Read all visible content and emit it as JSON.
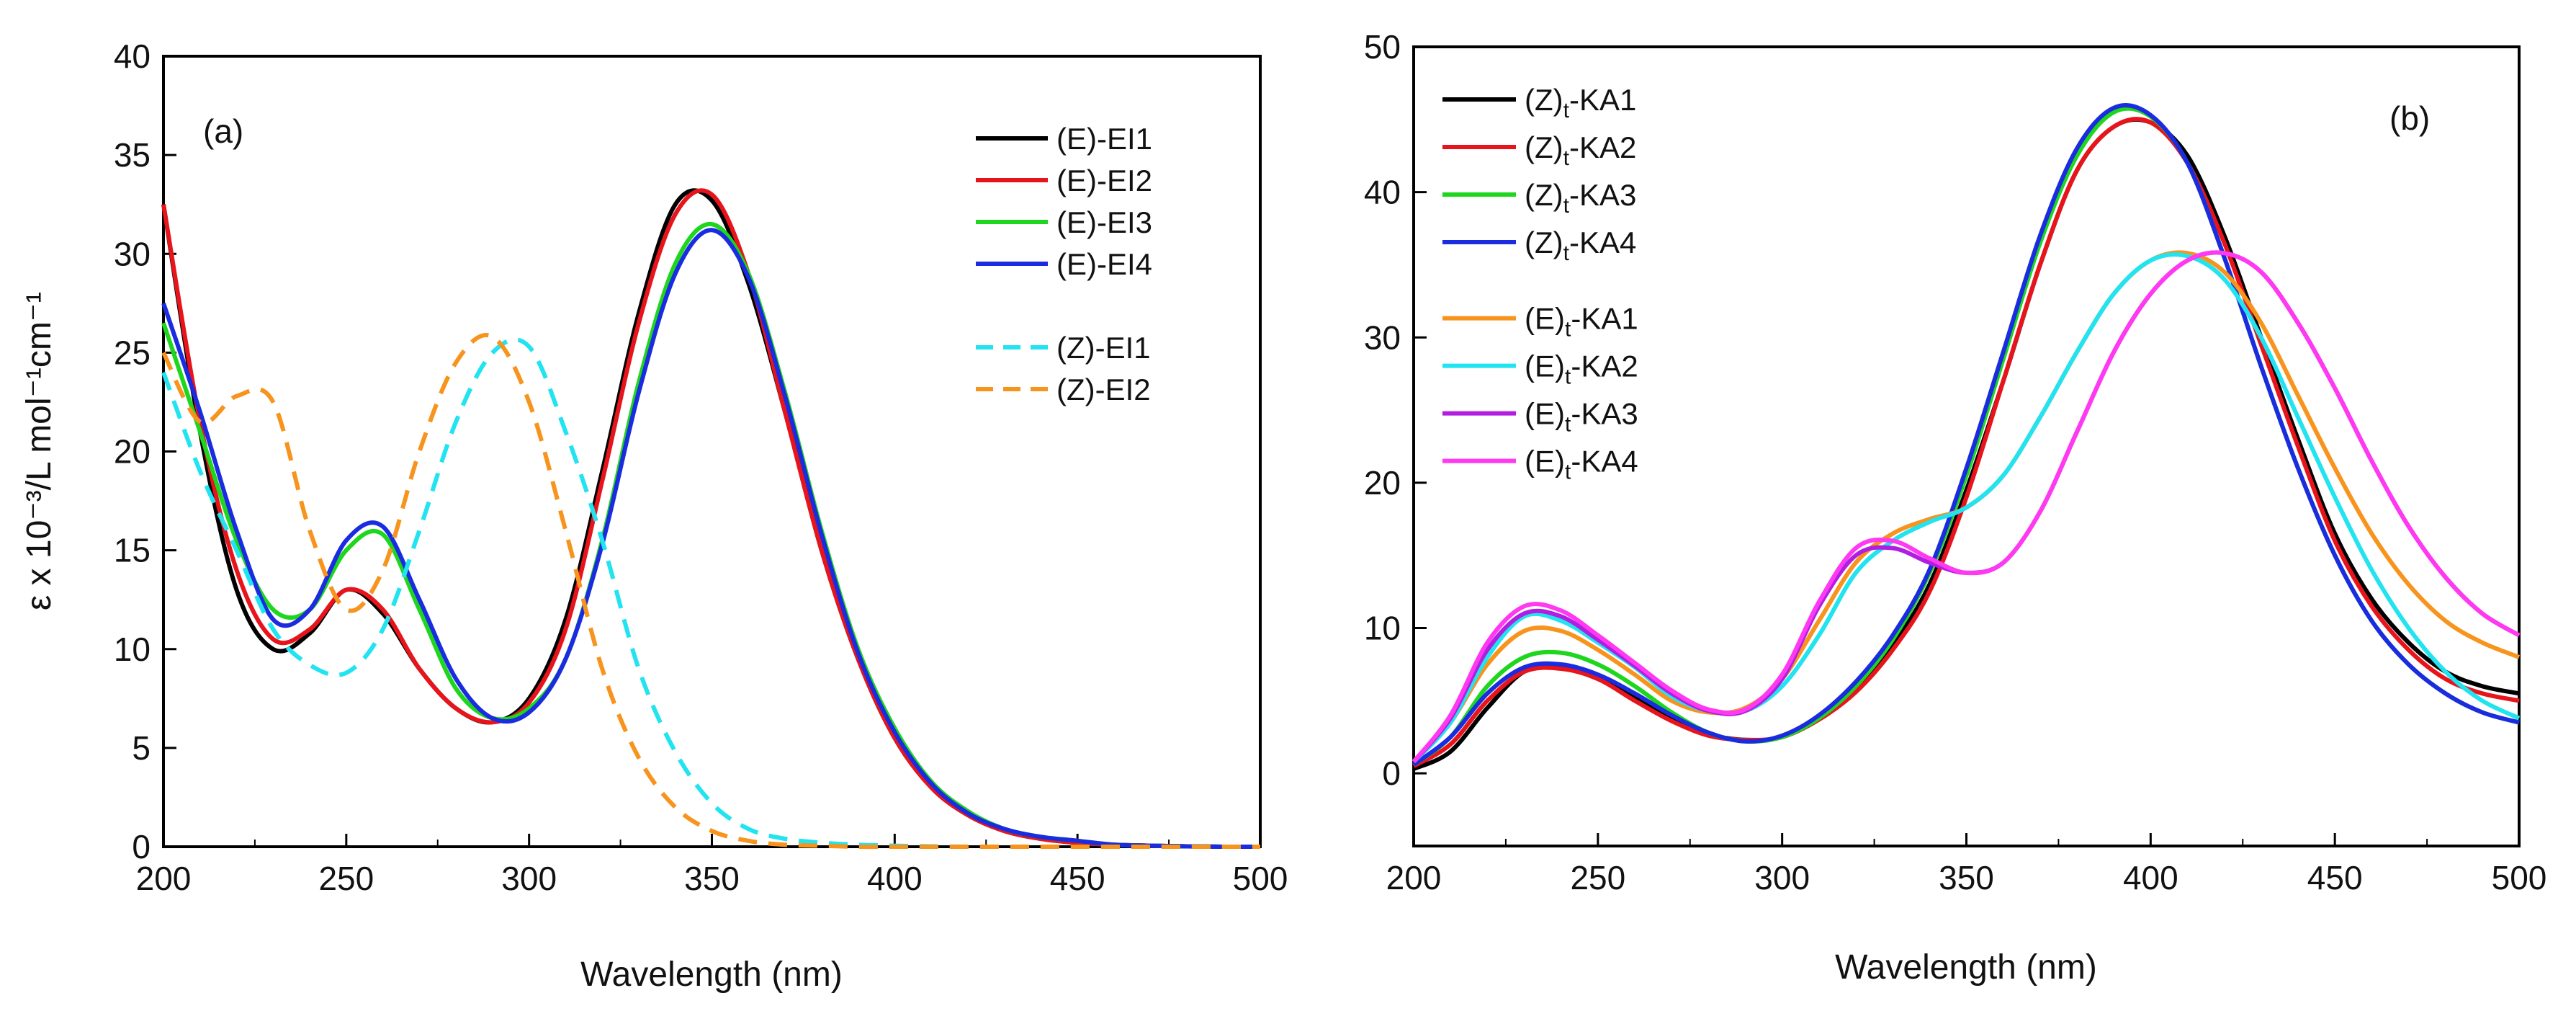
{
  "chart_data": [
    {
      "type": "line",
      "panel_label": "(a)",
      "xlabel": "Wavelength (nm)",
      "ylabel": "ε x 10⁻³/L mol⁻¹cm⁻¹",
      "xlim": [
        200,
        500
      ],
      "ylim": [
        0,
        40
      ],
      "xticks": [
        200,
        250,
        300,
        350,
        400,
        450,
        500
      ],
      "yticks": [
        0,
        5,
        10,
        15,
        20,
        25,
        30,
        35,
        40
      ],
      "xtick_labels": [
        "200",
        "250",
        "300",
        "350",
        "400",
        "450",
        "500"
      ],
      "ytick_labels": [
        "0",
        "5",
        "10",
        "15",
        "20",
        "25",
        "30",
        "35",
        "40"
      ],
      "legend_position": "top-right",
      "series": [
        {
          "name": "(E)-EI1",
          "color": "#000000",
          "dash": "solid",
          "x": [
            200,
            210,
            220,
            230,
            240,
            250,
            260,
            270,
            280,
            290,
            300,
            310,
            320,
            330,
            340,
            350,
            360,
            370,
            380,
            390,
            400,
            410,
            420,
            430,
            440,
            450,
            460,
            470,
            480,
            490,
            500
          ],
          "y": [
            32.5,
            21,
            13,
            10,
            10.8,
            13,
            11.8,
            9,
            7,
            6.3,
            7.5,
            11.5,
            19,
            27,
            32.5,
            32.7,
            28.5,
            22,
            15,
            9.5,
            5.5,
            3,
            1.6,
            0.8,
            0.4,
            0.2,
            0.1,
            0.05,
            0.02,
            0,
            0
          ]
        },
        {
          "name": "(E)-EI2",
          "color": "#e8141c",
          "dash": "solid",
          "x": [
            200,
            210,
            220,
            230,
            240,
            250,
            260,
            270,
            280,
            290,
            300,
            310,
            320,
            330,
            340,
            350,
            360,
            370,
            380,
            390,
            400,
            410,
            420,
            430,
            440,
            450,
            460,
            470,
            480,
            490,
            500
          ],
          "y": [
            32.5,
            21.5,
            14,
            10.5,
            11,
            13,
            12,
            9,
            7,
            6.3,
            7.3,
            11,
            18.5,
            26.5,
            32,
            33,
            29,
            22,
            15,
            9.5,
            5.5,
            3,
            1.6,
            0.8,
            0.4,
            0.2,
            0.1,
            0.05,
            0.02,
            0,
            0
          ]
        },
        {
          "name": "(E)-EI3",
          "color": "#1ed61e",
          "dash": "solid",
          "x": [
            200,
            210,
            220,
            230,
            240,
            250,
            260,
            270,
            280,
            290,
            300,
            310,
            320,
            330,
            340,
            350,
            360,
            370,
            380,
            390,
            400,
            410,
            420,
            430,
            440,
            450,
            460,
            470,
            480,
            490,
            500
          ],
          "y": [
            26.5,
            21,
            15.5,
            12,
            12,
            15,
            15.8,
            12,
            8,
            6.5,
            7,
            9.5,
            15.5,
            23.5,
            29.5,
            31.5,
            29,
            23,
            16,
            10,
            6,
            3.3,
            1.8,
            0.9,
            0.5,
            0.3,
            0.1,
            0.05,
            0.02,
            0,
            0
          ]
        },
        {
          "name": "(E)-EI4",
          "color": "#1a2be0",
          "dash": "solid",
          "x": [
            200,
            210,
            220,
            230,
            240,
            250,
            260,
            270,
            280,
            290,
            300,
            310,
            320,
            330,
            340,
            350,
            360,
            370,
            380,
            390,
            400,
            410,
            420,
            430,
            440,
            450,
            460,
            470,
            480,
            490,
            500
          ],
          "y": [
            27.5,
            22,
            16,
            11.5,
            12,
            15.5,
            16.2,
            12.5,
            8.5,
            6.5,
            6.8,
            9.5,
            15.3,
            23,
            29,
            31.2,
            28.8,
            22.8,
            15.8,
            9.8,
            5.8,
            3.2,
            1.7,
            0.9,
            0.5,
            0.3,
            0.1,
            0.05,
            0.02,
            0,
            0
          ]
        },
        {
          "name": "(Z)-EI1",
          "color": "#22e3f0",
          "dash": "dashed",
          "x": [
            200,
            210,
            220,
            230,
            240,
            250,
            260,
            270,
            280,
            290,
            300,
            310,
            320,
            330,
            340,
            350,
            360,
            370,
            380,
            390,
            400,
            410,
            420,
            430,
            440,
            450,
            460,
            470,
            480,
            490,
            500
          ],
          "y": [
            24,
            19,
            15,
            11,
            9.2,
            8.8,
            11,
            16,
            21.5,
            25,
            25.3,
            21,
            15.5,
            9,
            4.8,
            2.2,
            0.9,
            0.4,
            0.2,
            0.1,
            0.05,
            0.02,
            0,
            0,
            0,
            0,
            0,
            0,
            0,
            0,
            0
          ]
        },
        {
          "name": "(Z)-EI2",
          "color": "#f7941d",
          "dash": "dashed",
          "x": [
            200,
            210,
            220,
            230,
            240,
            250,
            260,
            270,
            280,
            290,
            300,
            310,
            320,
            330,
            340,
            350,
            360,
            370,
            380,
            390,
            400,
            410,
            420,
            430,
            440,
            450,
            460,
            470,
            480,
            490,
            500
          ],
          "y": [
            25,
            21.5,
            22.8,
            22.5,
            16,
            12,
            14,
            20,
            24.5,
            25.8,
            22.5,
            16,
            9,
            4.5,
            2,
            0.8,
            0.3,
            0.1,
            0.05,
            0,
            0,
            0,
            0,
            0,
            0,
            0,
            0,
            0,
            0,
            0,
            0
          ]
        }
      ]
    },
    {
      "type": "line",
      "panel_label": "(b)",
      "xlabel": "Wavelength (nm)",
      "ylabel": "",
      "xlim": [
        200,
        500
      ],
      "ylim": [
        -5,
        50
      ],
      "xticks": [
        200,
        250,
        300,
        350,
        400,
        450,
        500
      ],
      "yticks": [
        0,
        10,
        20,
        30,
        40,
        50
      ],
      "xtick_labels": [
        "200",
        "250",
        "300",
        "350",
        "400",
        "450",
        "500"
      ],
      "ytick_labels": [
        "0",
        "10",
        "20",
        "30",
        "40",
        "50"
      ],
      "legend_position": "top-left",
      "series": [
        {
          "name": "(Z)t-KA1",
          "prefix": "(Z)",
          "sub": "t",
          "suffix": "-KA1",
          "color": "#000000",
          "dash": "solid",
          "x": [
            200,
            210,
            220,
            230,
            240,
            250,
            260,
            270,
            280,
            290,
            300,
            310,
            320,
            330,
            340,
            350,
            360,
            370,
            380,
            390,
            400,
            410,
            420,
            430,
            440,
            450,
            460,
            470,
            480,
            490,
            500
          ],
          "y": [
            0.3,
            1.5,
            4.5,
            7,
            7.3,
            6.5,
            5.2,
            3.8,
            2.7,
            2.3,
            2.5,
            3.8,
            5.8,
            8.8,
            13,
            19.5,
            27,
            35,
            41.5,
            44.5,
            44.8,
            42.5,
            37,
            30,
            23,
            16.5,
            12,
            9,
            7,
            6,
            5.5
          ]
        },
        {
          "name": "(Z)t-KA2",
          "prefix": "(Z)",
          "sub": "t",
          "suffix": "-KA2",
          "color": "#e8141c",
          "dash": "solid",
          "x": [
            200,
            210,
            220,
            230,
            240,
            250,
            260,
            270,
            280,
            290,
            300,
            310,
            320,
            330,
            340,
            350,
            360,
            370,
            380,
            390,
            400,
            410,
            420,
            430,
            440,
            450,
            460,
            470,
            480,
            490,
            500
          ],
          "y": [
            0.5,
            2,
            5,
            7,
            7.2,
            6.5,
            5,
            3.6,
            2.6,
            2.3,
            2.5,
            3.7,
            5.6,
            8.5,
            12.5,
            19,
            27,
            35,
            41.5,
            44.5,
            44.8,
            42,
            36.5,
            29.5,
            22.5,
            16,
            11.5,
            8.5,
            6.5,
            5.5,
            5
          ]
        },
        {
          "name": "(Z)t-KA3",
          "prefix": "(Z)",
          "sub": "t",
          "suffix": "-KA3",
          "color": "#1ed61e",
          "dash": "solid",
          "x": [
            200,
            210,
            220,
            230,
            240,
            250,
            260,
            270,
            280,
            290,
            300,
            310,
            320,
            330,
            340,
            350,
            360,
            370,
            380,
            390,
            400,
            410,
            420,
            430,
            440,
            450,
            460,
            470,
            480,
            490,
            500
          ],
          "y": [
            0.6,
            2.5,
            6,
            8,
            8.3,
            7.5,
            6,
            4.2,
            2.8,
            2.2,
            2.5,
            3.8,
            6,
            9.2,
            13.8,
            20.5,
            28.5,
            36.5,
            42.5,
            45.5,
            45.2,
            42,
            35.5,
            28,
            21,
            15,
            10.5,
            7.5,
            5.5,
            4.2,
            3.5
          ]
        },
        {
          "name": "(Z)t-KA4",
          "prefix": "(Z)",
          "sub": "t",
          "suffix": "-KA4",
          "color": "#1a2be0",
          "dash": "solid",
          "x": [
            200,
            210,
            220,
            230,
            240,
            250,
            260,
            270,
            280,
            290,
            300,
            310,
            320,
            330,
            340,
            350,
            360,
            370,
            380,
            390,
            400,
            410,
            420,
            430,
            440,
            450,
            460,
            470,
            480,
            490,
            500
          ],
          "y": [
            0.6,
            2.5,
            5.5,
            7.3,
            7.5,
            6.8,
            5.5,
            4,
            2.8,
            2.2,
            2.6,
            4,
            6.3,
            9.5,
            14,
            21,
            29,
            37,
            43,
            45.8,
            45.3,
            42,
            35.5,
            28,
            21,
            15,
            10.5,
            7.5,
            5.5,
            4.2,
            3.5
          ]
        },
        {
          "name": "(E)t-KA1",
          "prefix": "(E)",
          "sub": "t",
          "suffix": "-KA1",
          "color": "#f7941d",
          "dash": "solid",
          "x": [
            200,
            210,
            220,
            230,
            240,
            250,
            260,
            270,
            280,
            290,
            300,
            310,
            320,
            330,
            340,
            350,
            360,
            370,
            380,
            390,
            400,
            410,
            420,
            430,
            440,
            450,
            460,
            470,
            480,
            490,
            500
          ],
          "y": [
            0.8,
            3.5,
            7.5,
            9.8,
            9.8,
            8.5,
            6.8,
            5,
            4.2,
            4.5,
            6.5,
            10.5,
            14.5,
            16.5,
            17.5,
            18.3,
            20.5,
            24.5,
            29,
            33,
            35.3,
            35.8,
            34.5,
            31,
            26,
            21,
            16.5,
            13,
            10.5,
            9,
            8
          ]
        },
        {
          "name": "(E)t-KA2",
          "prefix": "(E)",
          "sub": "t",
          "suffix": "-KA2",
          "color": "#22e3f0",
          "dash": "solid",
          "x": [
            200,
            210,
            220,
            230,
            240,
            250,
            260,
            270,
            280,
            290,
            300,
            310,
            320,
            330,
            340,
            350,
            360,
            370,
            380,
            390,
            400,
            410,
            420,
            430,
            440,
            450,
            460,
            470,
            480,
            490,
            500
          ],
          "y": [
            0.8,
            3.5,
            8,
            10.8,
            10.5,
            9,
            7.3,
            5.3,
            4.3,
            4.3,
            6,
            9.5,
            13.8,
            16,
            17.3,
            18.3,
            20.5,
            24.5,
            29,
            33,
            35.3,
            35.6,
            34,
            30,
            24.5,
            19,
            14,
            10,
            7,
            5,
            3.8
          ]
        },
        {
          "name": "(E)t-KA3",
          "prefix": "(E)",
          "sub": "t",
          "suffix": "-KA3",
          "color": "#b11ee0",
          "dash": "solid",
          "x": [
            200,
            210,
            220,
            230,
            240,
            250,
            260,
            270,
            280,
            290,
            300,
            310,
            320,
            330,
            340,
            350,
            360,
            370,
            380,
            390,
            400,
            410,
            420,
            430,
            440,
            450,
            460,
            470,
            480,
            490,
            500
          ],
          "y": [
            0.8,
            3.8,
            8.5,
            11,
            10.8,
            9.2,
            7.4,
            5.5,
            4.3,
            4.3,
            6.5,
            11.5,
            15,
            15.5,
            14.5,
            13.8,
            14.5,
            18,
            23.5,
            29,
            33,
            35.3,
            35.8,
            34.5,
            31,
            26.5,
            21.5,
            17,
            13.5,
            11,
            9.5
          ]
        },
        {
          "name": "(E)t-KA4",
          "prefix": "(E)",
          "sub": "t",
          "suffix": "-KA4",
          "color": "#ff38f2",
          "dash": "solid",
          "x": [
            200,
            210,
            220,
            230,
            240,
            250,
            260,
            270,
            280,
            290,
            300,
            310,
            320,
            330,
            340,
            350,
            360,
            370,
            380,
            390,
            400,
            410,
            420,
            430,
            440,
            450,
            460,
            470,
            480,
            490,
            500
          ],
          "y": [
            0.8,
            4,
            9,
            11.5,
            11.2,
            9.5,
            7.6,
            5.7,
            4.4,
            4.4,
            6.8,
            11.8,
            15.5,
            16,
            14.8,
            13.8,
            14.5,
            18,
            23.5,
            29,
            33,
            35.3,
            35.8,
            34.5,
            31,
            26.5,
            21.5,
            17,
            13.5,
            11,
            9.5
          ]
        }
      ]
    }
  ]
}
